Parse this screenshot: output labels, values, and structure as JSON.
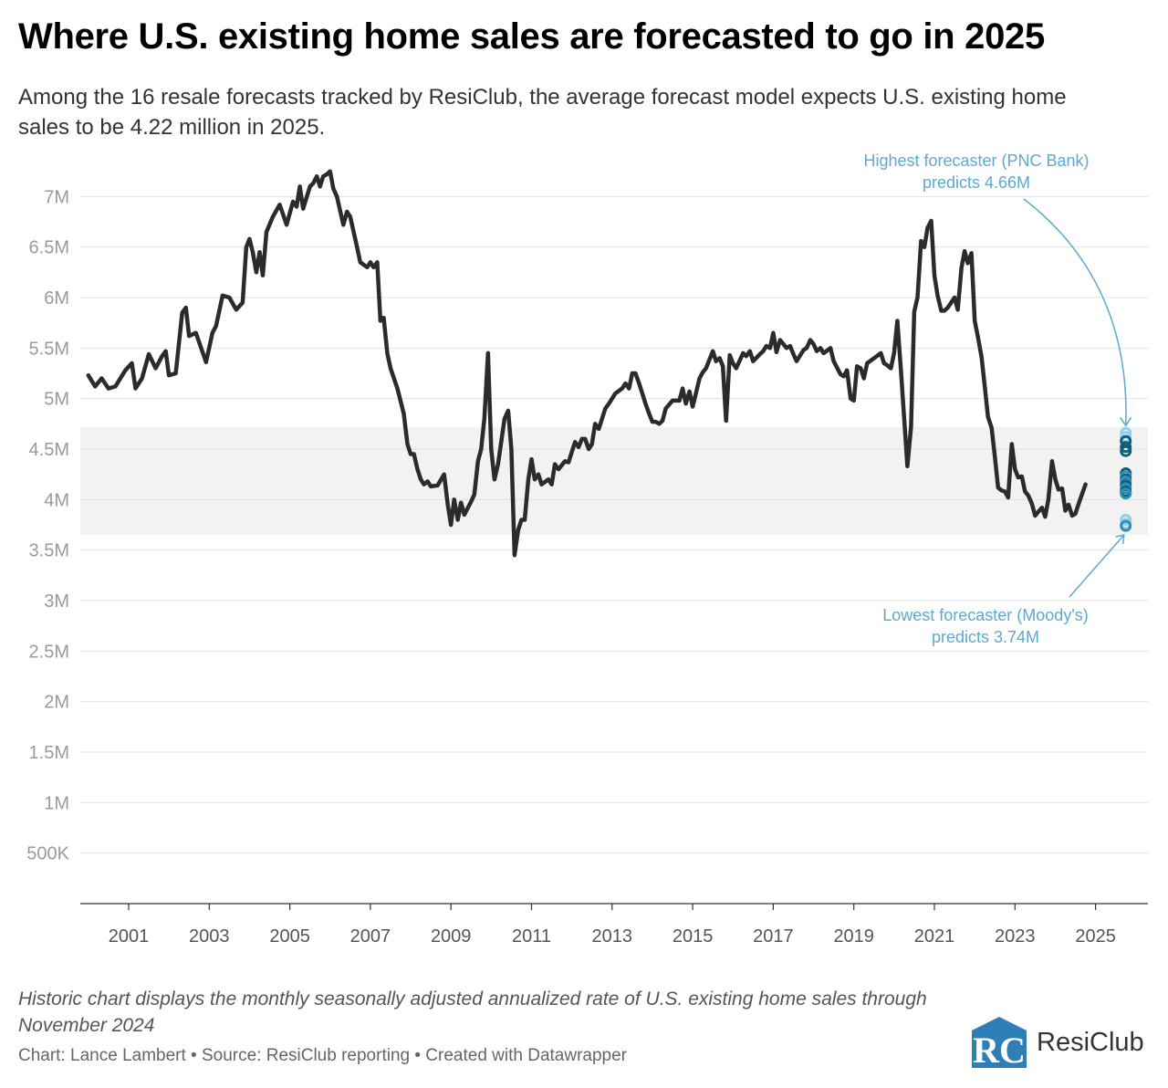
{
  "title": "Where U.S. existing home sales are forecasted to go in 2025",
  "subtitle": "Among the 16 resale forecasts tracked by ResiClub, the average forecast model expects U.S. existing home sales to be 4.22 million in 2025.",
  "note": "Historic chart displays the monthly seasonally adjusted annualized rate of U.S. existing home sales through November 2024",
  "source": "Chart: Lance Lambert • Source: ResiClub reporting • Created with Datawrapper",
  "logo": {
    "text": "ResiClub",
    "mark_letters": "RC"
  },
  "colors": {
    "line": "#2b2b2b",
    "band": "#f2f2f2",
    "annotation": "#5fa8cf",
    "forecast_dark": "#0f5e7a",
    "forecast_mid": "#2f8fb4",
    "forecast_light": "#8fd0ea",
    "axis_text": "#9a9a9a"
  },
  "chart_data": {
    "type": "line",
    "series": [
      {
        "values": [
          [
            2000.0,
            5.23
          ],
          [
            2000.17,
            5.12
          ],
          [
            2000.33,
            5.2
          ],
          [
            2000.5,
            5.1
          ],
          [
            2000.67,
            5.12
          ],
          [
            2000.92,
            5.28
          ],
          [
            2001.08,
            5.35
          ],
          [
            2001.17,
            5.1
          ],
          [
            2001.33,
            5.2
          ],
          [
            2001.5,
            5.44
          ],
          [
            2001.67,
            5.3
          ],
          [
            2001.83,
            5.42
          ],
          [
            2001.92,
            5.47
          ],
          [
            2002.0,
            5.23
          ],
          [
            2002.17,
            5.25
          ],
          [
            2002.33,
            5.85
          ],
          [
            2002.42,
            5.9
          ],
          [
            2002.5,
            5.62
          ],
          [
            2002.67,
            5.65
          ],
          [
            2002.92,
            5.36
          ],
          [
            2003.08,
            5.65
          ],
          [
            2003.17,
            5.72
          ],
          [
            2003.33,
            6.02
          ],
          [
            2003.5,
            6.0
          ],
          [
            2003.67,
            5.88
          ],
          [
            2003.83,
            5.95
          ],
          [
            2003.92,
            6.5
          ],
          [
            2004.0,
            6.58
          ],
          [
            2004.08,
            6.45
          ],
          [
            2004.17,
            6.25
          ],
          [
            2004.25,
            6.45
          ],
          [
            2004.33,
            6.22
          ],
          [
            2004.42,
            6.65
          ],
          [
            2004.58,
            6.8
          ],
          [
            2004.75,
            6.92
          ],
          [
            2004.92,
            6.72
          ],
          [
            2005.08,
            6.95
          ],
          [
            2005.17,
            6.9
          ],
          [
            2005.25,
            7.1
          ],
          [
            2005.33,
            6.88
          ],
          [
            2005.5,
            7.1
          ],
          [
            2005.58,
            7.13
          ],
          [
            2005.67,
            7.2
          ],
          [
            2005.75,
            7.1
          ],
          [
            2005.83,
            7.2
          ],
          [
            2005.92,
            7.22
          ],
          [
            2006.0,
            7.25
          ],
          [
            2006.08,
            7.08
          ],
          [
            2006.17,
            7.0
          ],
          [
            2006.33,
            6.72
          ],
          [
            2006.42,
            6.85
          ],
          [
            2006.5,
            6.8
          ],
          [
            2006.67,
            6.5
          ],
          [
            2006.75,
            6.35
          ],
          [
            2006.92,
            6.3
          ],
          [
            2007.0,
            6.35
          ],
          [
            2007.08,
            6.3
          ],
          [
            2007.17,
            6.35
          ],
          [
            2007.25,
            5.77
          ],
          [
            2007.33,
            5.8
          ],
          [
            2007.42,
            5.45
          ],
          [
            2007.5,
            5.3
          ],
          [
            2007.67,
            5.1
          ],
          [
            2007.83,
            4.85
          ],
          [
            2007.92,
            4.55
          ],
          [
            2008.0,
            4.45
          ],
          [
            2008.08,
            4.45
          ],
          [
            2008.17,
            4.3
          ],
          [
            2008.25,
            4.2
          ],
          [
            2008.33,
            4.15
          ],
          [
            2008.42,
            4.18
          ],
          [
            2008.5,
            4.13
          ],
          [
            2008.67,
            4.14
          ],
          [
            2008.83,
            4.25
          ],
          [
            2008.92,
            3.95
          ],
          [
            2009.0,
            3.75
          ],
          [
            2009.08,
            4.0
          ],
          [
            2009.17,
            3.8
          ],
          [
            2009.25,
            3.97
          ],
          [
            2009.33,
            3.85
          ],
          [
            2009.5,
            3.98
          ],
          [
            2009.58,
            4.05
          ],
          [
            2009.67,
            4.38
          ],
          [
            2009.75,
            4.5
          ],
          [
            2009.83,
            4.8
          ],
          [
            2009.92,
            5.45
          ],
          [
            2010.0,
            4.5
          ],
          [
            2010.08,
            4.2
          ],
          [
            2010.17,
            4.35
          ],
          [
            2010.33,
            4.8
          ],
          [
            2010.42,
            4.88
          ],
          [
            2010.5,
            4.5
          ],
          [
            2010.58,
            3.45
          ],
          [
            2010.67,
            3.7
          ],
          [
            2010.75,
            3.8
          ],
          [
            2010.83,
            3.8
          ],
          [
            2010.92,
            4.2
          ],
          [
            2011.0,
            4.4
          ],
          [
            2011.08,
            4.2
          ],
          [
            2011.17,
            4.25
          ],
          [
            2011.25,
            4.15
          ],
          [
            2011.42,
            4.2
          ],
          [
            2011.5,
            4.15
          ],
          [
            2011.58,
            4.35
          ],
          [
            2011.67,
            4.3
          ],
          [
            2011.83,
            4.38
          ],
          [
            2011.92,
            4.37
          ],
          [
            2012.0,
            4.47
          ],
          [
            2012.08,
            4.57
          ],
          [
            2012.17,
            4.52
          ],
          [
            2012.25,
            4.6
          ],
          [
            2012.33,
            4.6
          ],
          [
            2012.42,
            4.5
          ],
          [
            2012.5,
            4.55
          ],
          [
            2012.58,
            4.75
          ],
          [
            2012.67,
            4.7
          ],
          [
            2012.83,
            4.9
          ],
          [
            2012.92,
            4.95
          ],
          [
            2013.0,
            5.0
          ],
          [
            2013.08,
            5.05
          ],
          [
            2013.25,
            5.1
          ],
          [
            2013.33,
            5.15
          ],
          [
            2013.42,
            5.1
          ],
          [
            2013.5,
            5.25
          ],
          [
            2013.58,
            5.25
          ],
          [
            2013.67,
            5.15
          ],
          [
            2013.83,
            4.95
          ],
          [
            2013.92,
            4.85
          ],
          [
            2014.0,
            4.77
          ],
          [
            2014.08,
            4.77
          ],
          [
            2014.17,
            4.75
          ],
          [
            2014.25,
            4.78
          ],
          [
            2014.33,
            4.9
          ],
          [
            2014.5,
            4.98
          ],
          [
            2014.67,
            4.98
          ],
          [
            2014.75,
            5.1
          ],
          [
            2014.83,
            4.95
          ],
          [
            2014.92,
            5.07
          ],
          [
            2015.0,
            4.92
          ],
          [
            2015.08,
            5.05
          ],
          [
            2015.17,
            5.2
          ],
          [
            2015.25,
            5.26
          ],
          [
            2015.33,
            5.3
          ],
          [
            2015.5,
            5.47
          ],
          [
            2015.58,
            5.37
          ],
          [
            2015.67,
            5.4
          ],
          [
            2015.75,
            5.32
          ],
          [
            2015.83,
            4.78
          ],
          [
            2015.92,
            5.43
          ],
          [
            2016.0,
            5.35
          ],
          [
            2016.08,
            5.3
          ],
          [
            2016.25,
            5.45
          ],
          [
            2016.33,
            5.42
          ],
          [
            2016.42,
            5.47
          ],
          [
            2016.5,
            5.37
          ],
          [
            2016.67,
            5.44
          ],
          [
            2016.75,
            5.47
          ],
          [
            2016.83,
            5.52
          ],
          [
            2016.92,
            5.5
          ],
          [
            2017.0,
            5.65
          ],
          [
            2017.08,
            5.46
          ],
          [
            2017.17,
            5.58
          ],
          [
            2017.33,
            5.5
          ],
          [
            2017.42,
            5.52
          ],
          [
            2017.5,
            5.44
          ],
          [
            2017.58,
            5.37
          ],
          [
            2017.75,
            5.48
          ],
          [
            2017.83,
            5.5
          ],
          [
            2017.92,
            5.58
          ],
          [
            2018.0,
            5.54
          ],
          [
            2018.08,
            5.47
          ],
          [
            2018.17,
            5.5
          ],
          [
            2018.25,
            5.45
          ],
          [
            2018.42,
            5.5
          ],
          [
            2018.5,
            5.37
          ],
          [
            2018.67,
            5.24
          ],
          [
            2018.75,
            5.22
          ],
          [
            2018.83,
            5.28
          ],
          [
            2018.92,
            5.0
          ],
          [
            2019.0,
            4.98
          ],
          [
            2019.08,
            5.32
          ],
          [
            2019.17,
            5.3
          ],
          [
            2019.25,
            5.2
          ],
          [
            2019.33,
            5.35
          ],
          [
            2019.5,
            5.4
          ],
          [
            2019.67,
            5.45
          ],
          [
            2019.75,
            5.35
          ],
          [
            2019.83,
            5.33
          ],
          [
            2019.92,
            5.3
          ],
          [
            2020.0,
            5.45
          ],
          [
            2020.08,
            5.77
          ],
          [
            2020.17,
            5.27
          ],
          [
            2020.33,
            4.33
          ],
          [
            2020.42,
            4.72
          ],
          [
            2020.5,
            5.86
          ],
          [
            2020.58,
            6.0
          ],
          [
            2020.67,
            6.56
          ],
          [
            2020.75,
            6.5
          ],
          [
            2020.83,
            6.69
          ],
          [
            2020.92,
            6.76
          ],
          [
            2021.0,
            6.22
          ],
          [
            2021.08,
            6.02
          ],
          [
            2021.17,
            5.87
          ],
          [
            2021.25,
            5.87
          ],
          [
            2021.33,
            5.9
          ],
          [
            2021.5,
            6.0
          ],
          [
            2021.58,
            5.88
          ],
          [
            2021.67,
            6.29
          ],
          [
            2021.75,
            6.46
          ],
          [
            2021.83,
            6.34
          ],
          [
            2021.92,
            6.44
          ],
          [
            2022.0,
            5.77
          ],
          [
            2022.08,
            5.61
          ],
          [
            2022.17,
            5.41
          ],
          [
            2022.25,
            5.12
          ],
          [
            2022.33,
            4.82
          ],
          [
            2022.42,
            4.71
          ],
          [
            2022.5,
            4.43
          ],
          [
            2022.58,
            4.12
          ],
          [
            2022.67,
            4.09
          ],
          [
            2022.75,
            4.08
          ],
          [
            2022.83,
            4.02
          ],
          [
            2022.92,
            4.55
          ],
          [
            2023.0,
            4.3
          ],
          [
            2023.08,
            4.22
          ],
          [
            2023.17,
            4.23
          ],
          [
            2023.25,
            4.08
          ],
          [
            2023.33,
            4.04
          ],
          [
            2023.42,
            3.96
          ],
          [
            2023.5,
            3.84
          ],
          [
            2023.58,
            3.88
          ],
          [
            2023.67,
            3.92
          ],
          [
            2023.75,
            3.83
          ],
          [
            2023.83,
            4.0
          ],
          [
            2023.92,
            4.38
          ],
          [
            2024.0,
            4.2
          ],
          [
            2024.08,
            4.1
          ],
          [
            2024.17,
            4.11
          ],
          [
            2024.25,
            3.89
          ],
          [
            2024.33,
            3.95
          ],
          [
            2024.42,
            3.84
          ],
          [
            2024.5,
            3.86
          ],
          [
            2024.58,
            3.96
          ],
          [
            2024.67,
            4.06
          ],
          [
            2024.75,
            4.15
          ]
        ]
      }
    ],
    "forecasts_2025": [
      4.66,
      4.62,
      4.58,
      4.52,
      4.48,
      4.26,
      4.23,
      4.2,
      4.18,
      4.14,
      4.11,
      4.08,
      4.06,
      3.8,
      3.76,
      3.74
    ],
    "forecast_range_band": [
      3.65,
      4.72
    ],
    "x_ticks": [
      "2001",
      "2003",
      "2005",
      "2007",
      "2009",
      "2011",
      "2013",
      "2015",
      "2017",
      "2019",
      "2021",
      "2023",
      "2025"
    ],
    "y_ticks": [
      "500K",
      "1M",
      "1.5M",
      "2M",
      "2.5M",
      "3M",
      "3.5M",
      "4M",
      "4.5M",
      "5M",
      "5.5M",
      "6M",
      "6.5M",
      "7M"
    ],
    "xlim": [
      1999.8,
      2026.3
    ],
    "ylim": [
      0,
      7.5
    ],
    "annotations": {
      "highest": {
        "line1": "Highest forecaster (PNC Bank)",
        "line2": "predicts 4.66M"
      },
      "lowest": {
        "line1": "Lowest forecaster (Moody's)",
        "line2": "predicts 3.74M"
      }
    }
  }
}
